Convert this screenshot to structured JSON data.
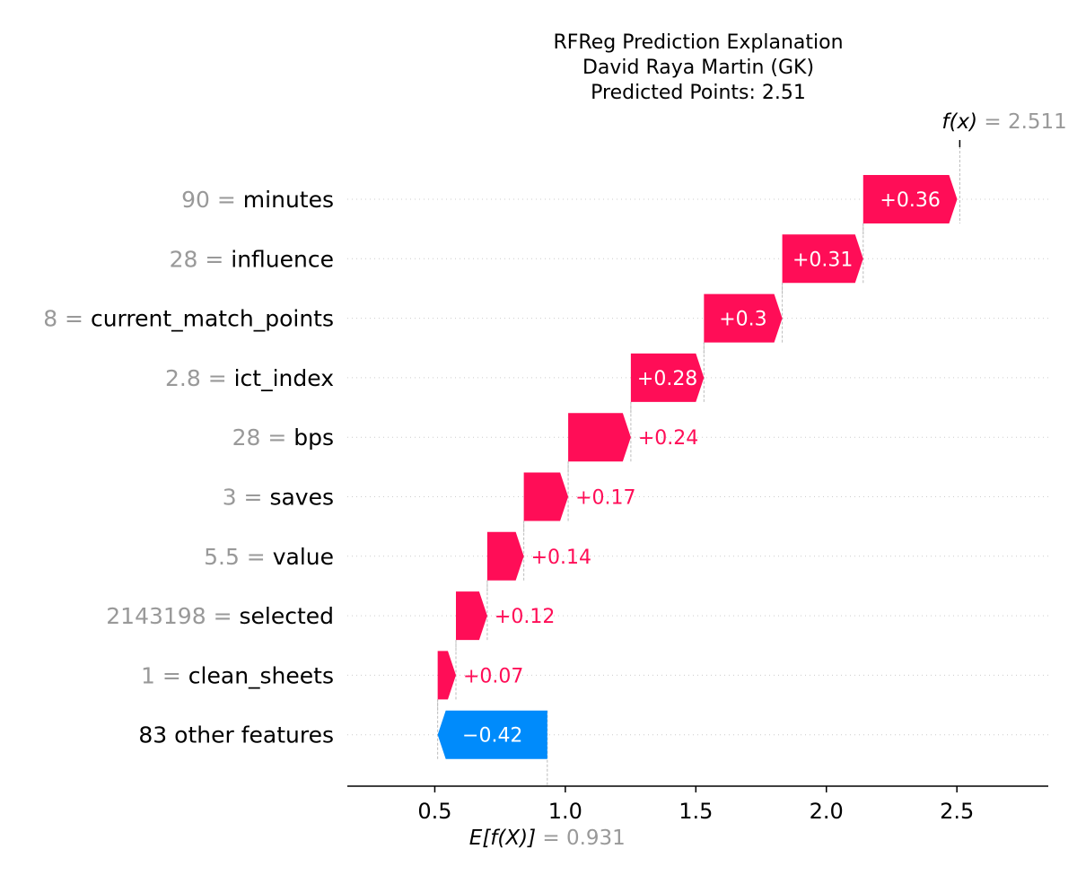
{
  "chart_data": {
    "type": "waterfall",
    "title_lines": [
      "RFReg Prediction Explanation",
      "David Raya Martin (GK)",
      "Predicted Points: 2.51"
    ],
    "base_value": 0.931,
    "base_value_text": "0.931",
    "base_label": "E[f(X)]",
    "final_value": 2.511,
    "final_value_text": "2.511",
    "final_label": "f(x)",
    "xlim": [
      0.165,
      2.85
    ],
    "xticks": [
      0.5,
      1.0,
      1.5,
      2.0,
      2.5
    ],
    "xtick_labels": [
      "0.5",
      "1.0",
      "1.5",
      "2.0",
      "2.5"
    ],
    "features": [
      {
        "value": "90",
        "name": "minutes",
        "contribution": 0.36,
        "label": "+0.36"
      },
      {
        "value": "28",
        "name": "influence",
        "contribution": 0.31,
        "label": "+0.31"
      },
      {
        "value": "8",
        "name": "current_match_points",
        "contribution": 0.3,
        "label": "+0.3"
      },
      {
        "value": "2.8",
        "name": "ict_index",
        "contribution": 0.28,
        "label": "+0.28"
      },
      {
        "value": "28",
        "name": "bps",
        "contribution": 0.24,
        "label": "+0.24"
      },
      {
        "value": "3",
        "name": "saves",
        "contribution": 0.17,
        "label": "+0.17"
      },
      {
        "value": "5.5",
        "name": "value",
        "contribution": 0.14,
        "label": "+0.14"
      },
      {
        "value": "2143198",
        "name": "selected",
        "contribution": 0.12,
        "label": "+0.12"
      },
      {
        "value": "1",
        "name": "clean_sheets",
        "contribution": 0.07,
        "label": "+0.07"
      },
      {
        "value": "",
        "name": "83 other features",
        "contribution": -0.42,
        "label": "−0.42"
      }
    ],
    "colors": {
      "positive": "#ff0d57",
      "negative": "#008bfb",
      "muted_text": "#999999",
      "guide_line": "#bbbbbb"
    }
  }
}
